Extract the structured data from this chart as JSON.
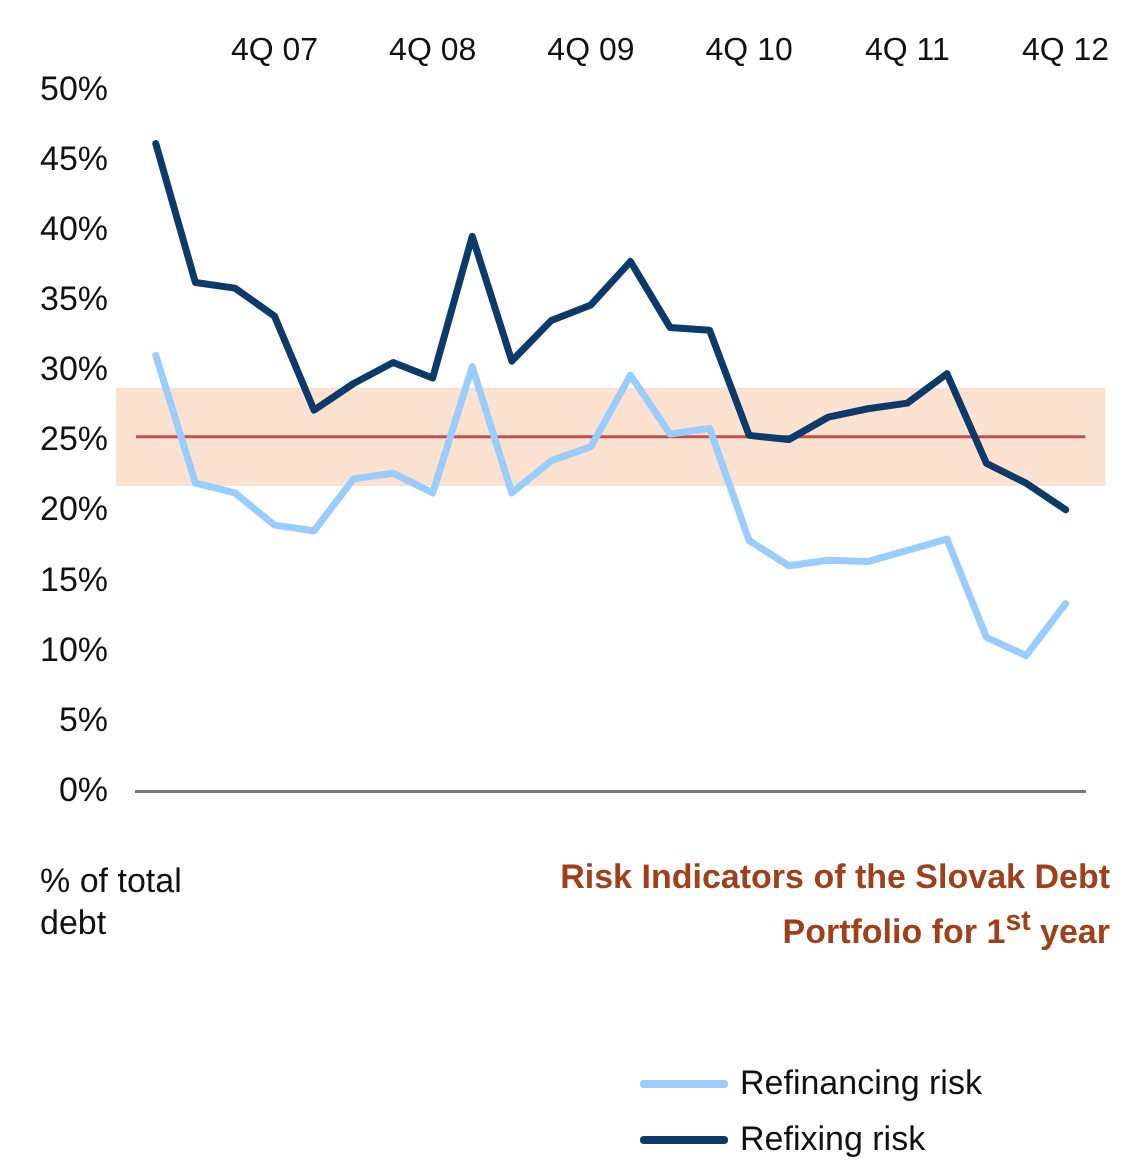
{
  "chart_data": {
    "type": "line",
    "title": "Risk Indicators of the Slovak Debt Portfolio for 1$^{st}$ year",
    "ylabel": "% of total debt",
    "categories": [
      null,
      null,
      null,
      "4Q 07",
      null,
      null,
      null,
      "4Q 08",
      null,
      null,
      null,
      "4Q 09",
      null,
      null,
      null,
      "4Q 10",
      null,
      null,
      null,
      "4Q 11",
      null,
      null,
      null,
      "4Q 12"
    ],
    "series": [
      {
        "name": "Refinancing risk",
        "color": "#99ccff",
        "values": [
          31.1,
          22.0,
          21.3,
          19.0,
          18.6,
          22.3,
          22.7,
          21.3,
          30.3,
          21.3,
          23.6,
          24.6,
          29.7,
          25.5,
          25.9,
          17.9,
          16.1,
          16.5,
          16.4,
          17.2,
          18.0,
          11.0,
          9.7,
          13.4
        ]
      },
      {
        "name": "Refixing risk",
        "color": "#0b3a6b",
        "values": [
          46.2,
          36.3,
          35.9,
          33.9,
          27.2,
          29.1,
          30.6,
          29.5,
          39.6,
          30.7,
          33.6,
          34.7,
          37.8,
          33.1,
          32.9,
          25.4,
          25.1,
          26.7,
          27.3,
          27.7,
          29.8,
          23.4,
          22.0,
          20.1
        ]
      }
    ],
    "ylim": [
      0,
      50
    ],
    "yticks": [
      {
        "value": 0,
        "label": "0%"
      },
      {
        "value": 5,
        "label": "5%"
      },
      {
        "value": 10,
        "label": "10%"
      },
      {
        "value": 15,
        "label": "15%"
      },
      {
        "value": 20,
        "label": "20%"
      },
      {
        "value": 25,
        "label": "25%"
      },
      {
        "value": 30,
        "label": "30%"
      },
      {
        "value": 35,
        "label": "35%"
      },
      {
        "value": 40,
        "label": "40%"
      },
      {
        "value": 45,
        "label": "45%"
      },
      {
        "value": 50,
        "label": "50%"
      }
    ],
    "ref_lines": [
      {
        "axis": "y",
        "value": 25.3,
        "label": null,
        "color": "#c0504d"
      }
    ],
    "bands": [
      {
        "axis": "y",
        "from": 21.8,
        "to": 28.8,
        "color": "#fbe1cf"
      }
    ],
    "grid": false,
    "legend": "bottom right",
    "marker": "none",
    "line_style": "solid"
  }
}
